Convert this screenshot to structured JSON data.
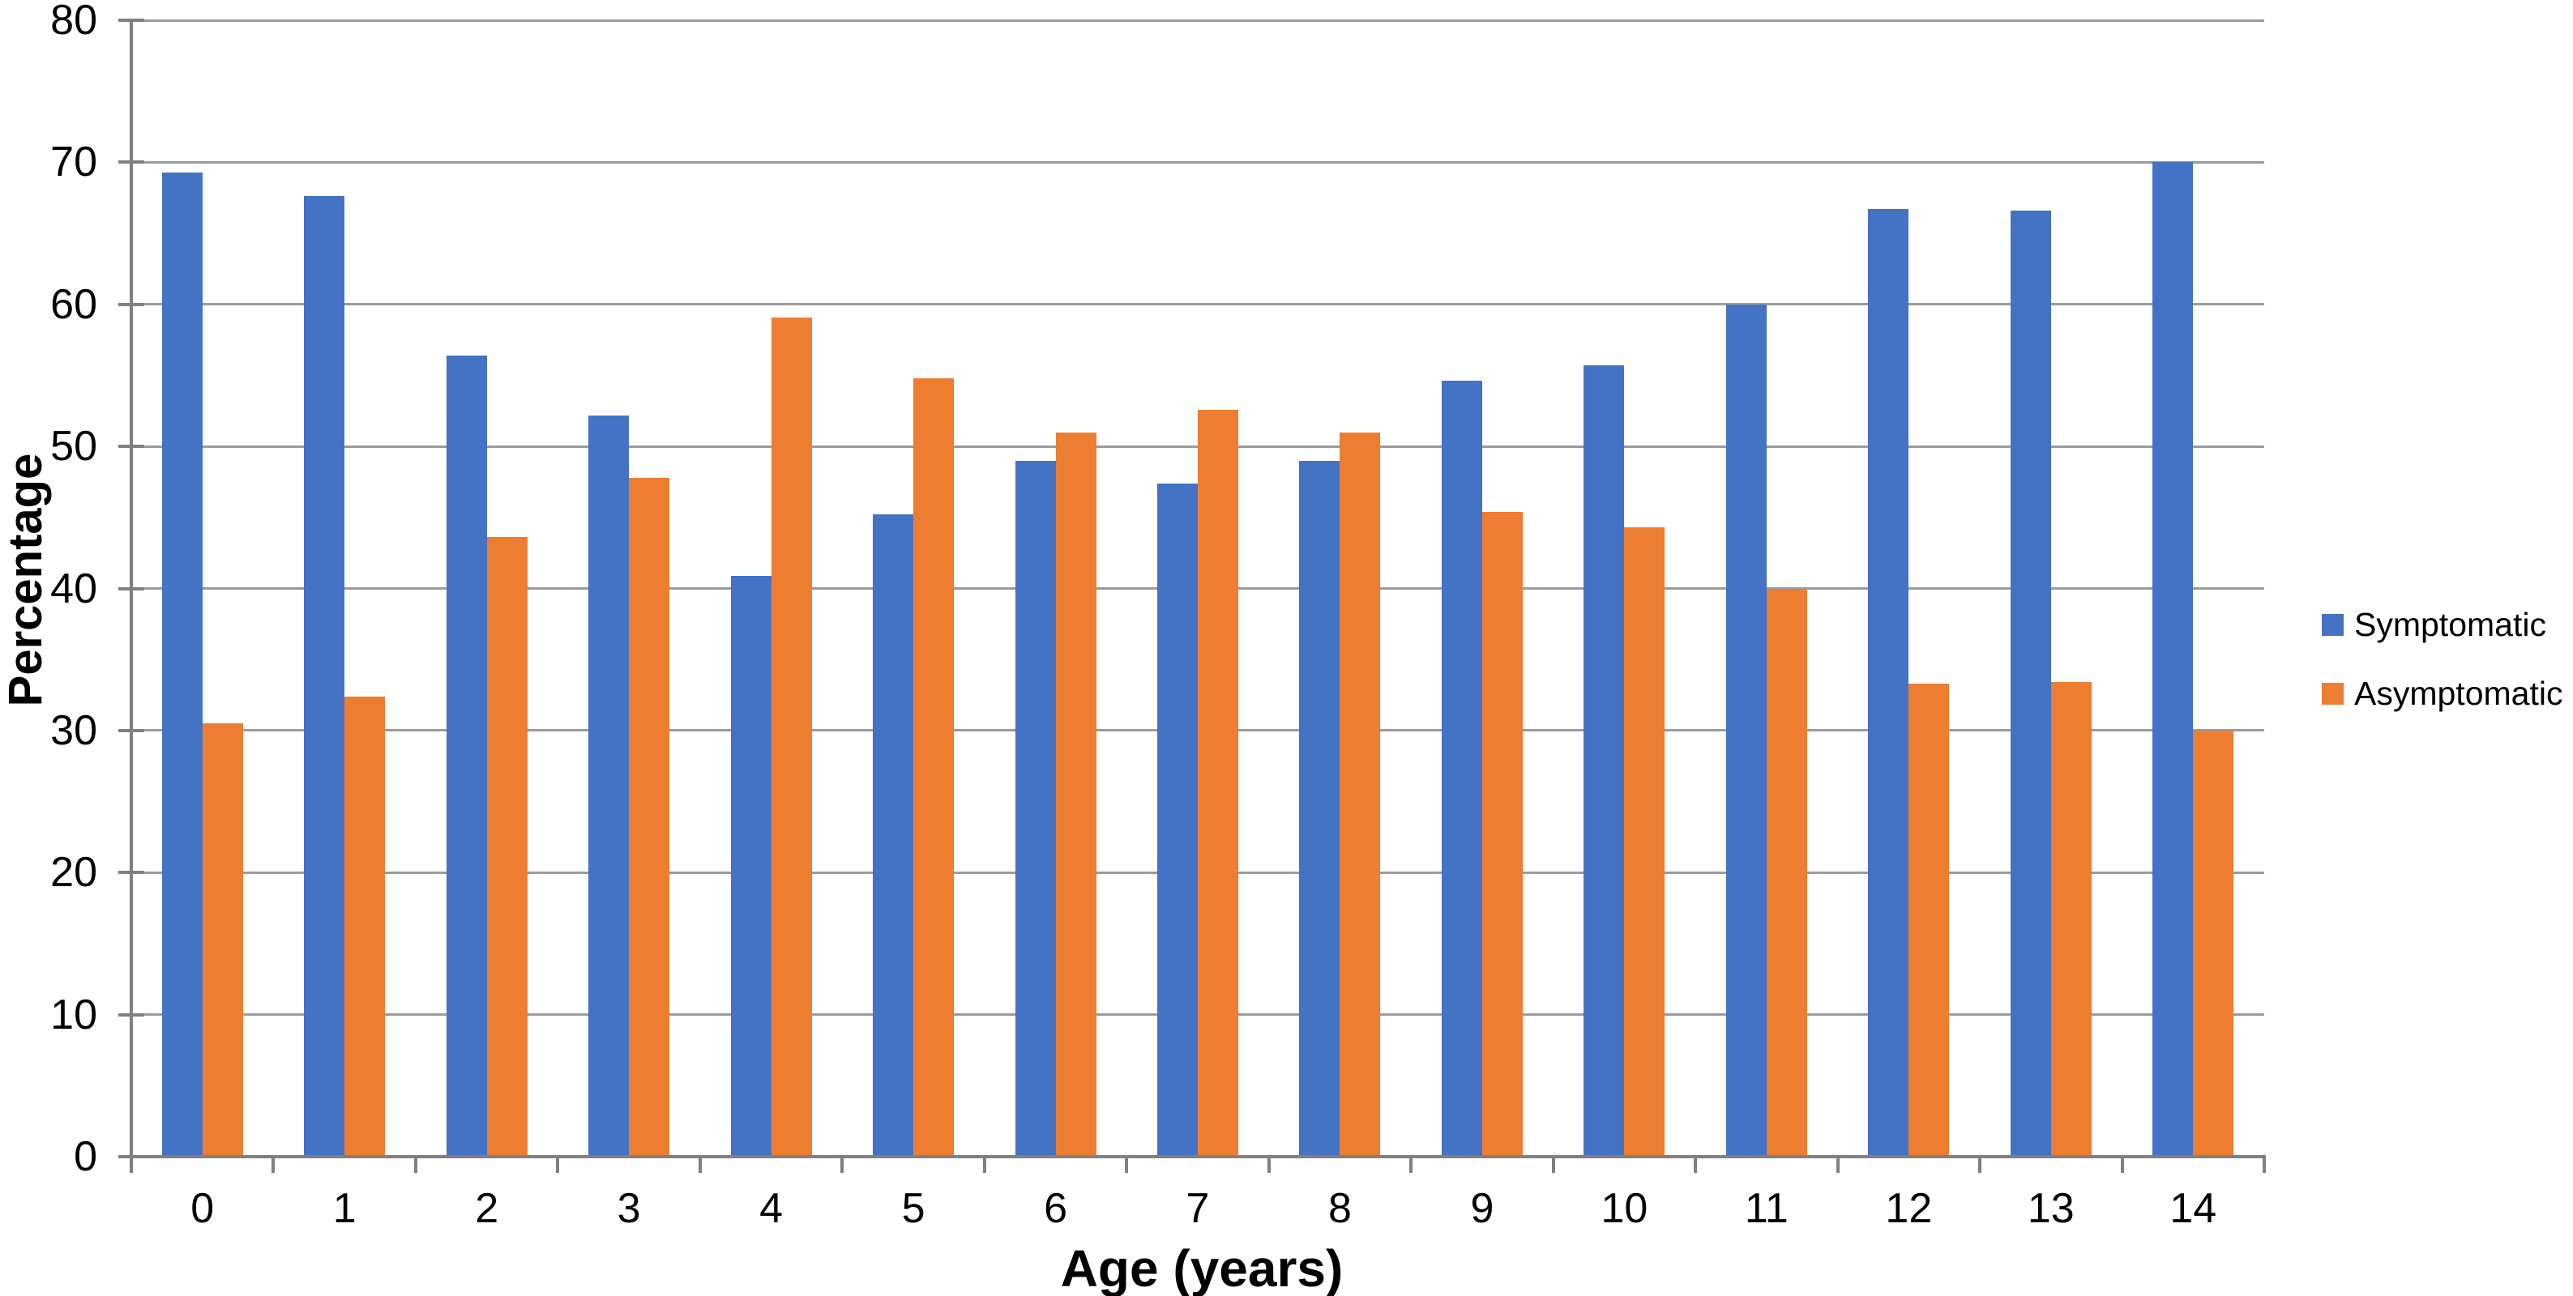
{
  "chart_data": {
    "type": "bar",
    "title": "",
    "categories": [
      "0",
      "1",
      "2",
      "3",
      "4",
      "5",
      "6",
      "7",
      "8",
      "9",
      "10",
      "11",
      "12",
      "13",
      "14"
    ],
    "series": [
      {
        "name": "Symptomatic",
        "color": "#4472C4",
        "values": [
          69.3,
          67.6,
          56.4,
          52.2,
          40.9,
          45.2,
          49.0,
          47.4,
          49.0,
          54.6,
          55.7,
          60.0,
          66.7,
          66.6,
          70.0
        ]
      },
      {
        "name": "Asymptomatic",
        "color": "#ED7D31",
        "values": [
          30.5,
          32.4,
          43.6,
          47.8,
          59.1,
          54.8,
          51.0,
          52.6,
          51.0,
          45.4,
          44.3,
          40.0,
          33.3,
          33.4,
          30.0
        ]
      }
    ],
    "xlabel": "Age (years)",
    "ylabel": "Percentage",
    "ylim": [
      0,
      80
    ],
    "ytick_step": 10,
    "yticks": [
      "0",
      "10",
      "20",
      "30",
      "40",
      "50",
      "60",
      "70",
      "80"
    ],
    "grid": true,
    "legend_position": "right-middle",
    "legend_labels": [
      "Symptomatic",
      "Asymptomatic"
    ]
  },
  "colors": {
    "symptomatic": "#4472C4",
    "asymptomatic": "#ED7D31",
    "gridline": "#9b9b9b",
    "axis": "#808080",
    "text": "#000000",
    "background": "#ffffff"
  }
}
